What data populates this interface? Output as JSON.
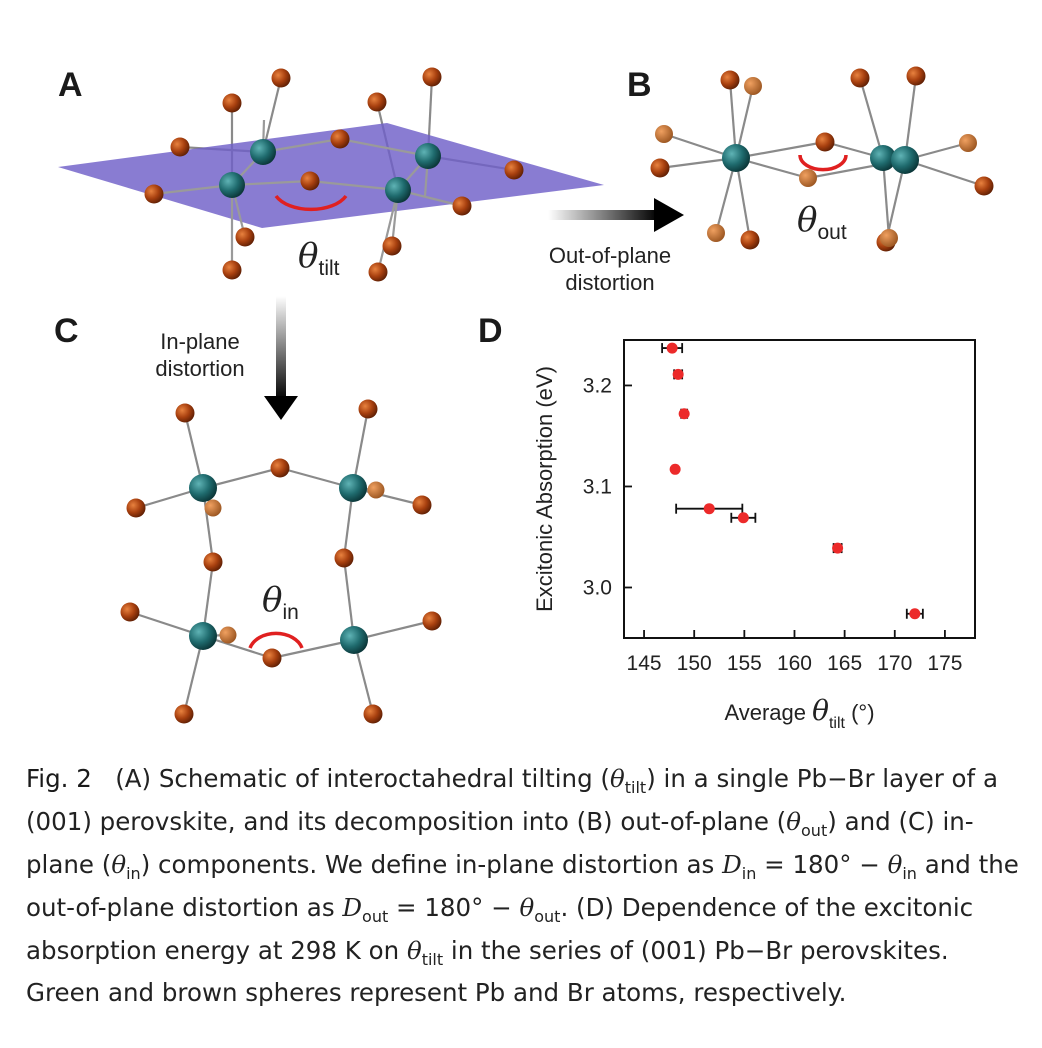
{
  "panels": {
    "a": {
      "letter": "A",
      "theta_symbol": "θ",
      "theta_sub": "tilt"
    },
    "b": {
      "letter": "B",
      "theta_symbol": "θ",
      "theta_sub": "out"
    },
    "c": {
      "letter": "C",
      "theta_symbol": "θ",
      "theta_sub": "in"
    },
    "d": {
      "letter": "D"
    }
  },
  "arrows": {
    "out_of_plane_line1": "Out-of-plane",
    "out_of_plane_line2": "distortion",
    "in_plane_line1": "In-plane",
    "in_plane_line2": "distortion"
  },
  "colors": {
    "pb": "#1f6b6e",
    "br": "#a8400f",
    "plane": "#6f5fc8",
    "angle_arc": "#e02020",
    "chart_point": "#ec2a2a"
  },
  "chart_data": {
    "type": "scatter",
    "xlabel_prefix": "Average ",
    "xlabel_theta": "θ",
    "xlabel_sub": "tilt",
    "xlabel_suffix": " (°)",
    "ylabel": "Excitonic Absorption (eV)",
    "xlim": [
      143,
      178
    ],
    "ylim": [
      2.95,
      3.245
    ],
    "xticks": [
      145,
      150,
      155,
      160,
      165,
      170,
      175
    ],
    "yticks": [
      3.0,
      3.1,
      3.2
    ],
    "ytick_labels": [
      "3.0",
      "3.1",
      "3.2"
    ],
    "points": [
      {
        "x": 147.8,
        "y": 3.237,
        "xerr": 1.0
      },
      {
        "x": 148.4,
        "y": 3.211,
        "xerr": 0.4
      },
      {
        "x": 149.0,
        "y": 3.172,
        "xerr": 0.3
      },
      {
        "x": 148.1,
        "y": 3.117,
        "xerr": 0.0
      },
      {
        "x": 151.5,
        "y": 3.078,
        "xerr": 3.3
      },
      {
        "x": 154.9,
        "y": 3.069,
        "xerr": 1.2
      },
      {
        "x": 164.3,
        "y": 3.039,
        "xerr": 0.4
      },
      {
        "x": 172.0,
        "y": 2.974,
        "xerr": 0.8
      }
    ]
  },
  "caption": {
    "fig_label": "Fig. 2",
    "p1": "(A) Schematic of interoctahedral tilting (",
    "th": "θ",
    "tilt": "tilt",
    "p2": ") in a single Pb−Br layer of a (001) perovskite, and its decomposition into (B) out-of-plane (",
    "out": "out",
    "p3": ") and (C) in-plane (",
    "in": "in",
    "p4": ") components. We define in-plane distortion as ",
    "D": "D",
    "p5": " = 180° − ",
    "p6": " and the out-of-plane distortion as ",
    "p7": " = 180° − ",
    "p8": ". (D) Dependence of the excitonic absorption energy at 298 K on ",
    "p9": " in the series of (001) Pb−Br perovskites. Green and brown spheres represent Pb and Br atoms, respectively."
  }
}
